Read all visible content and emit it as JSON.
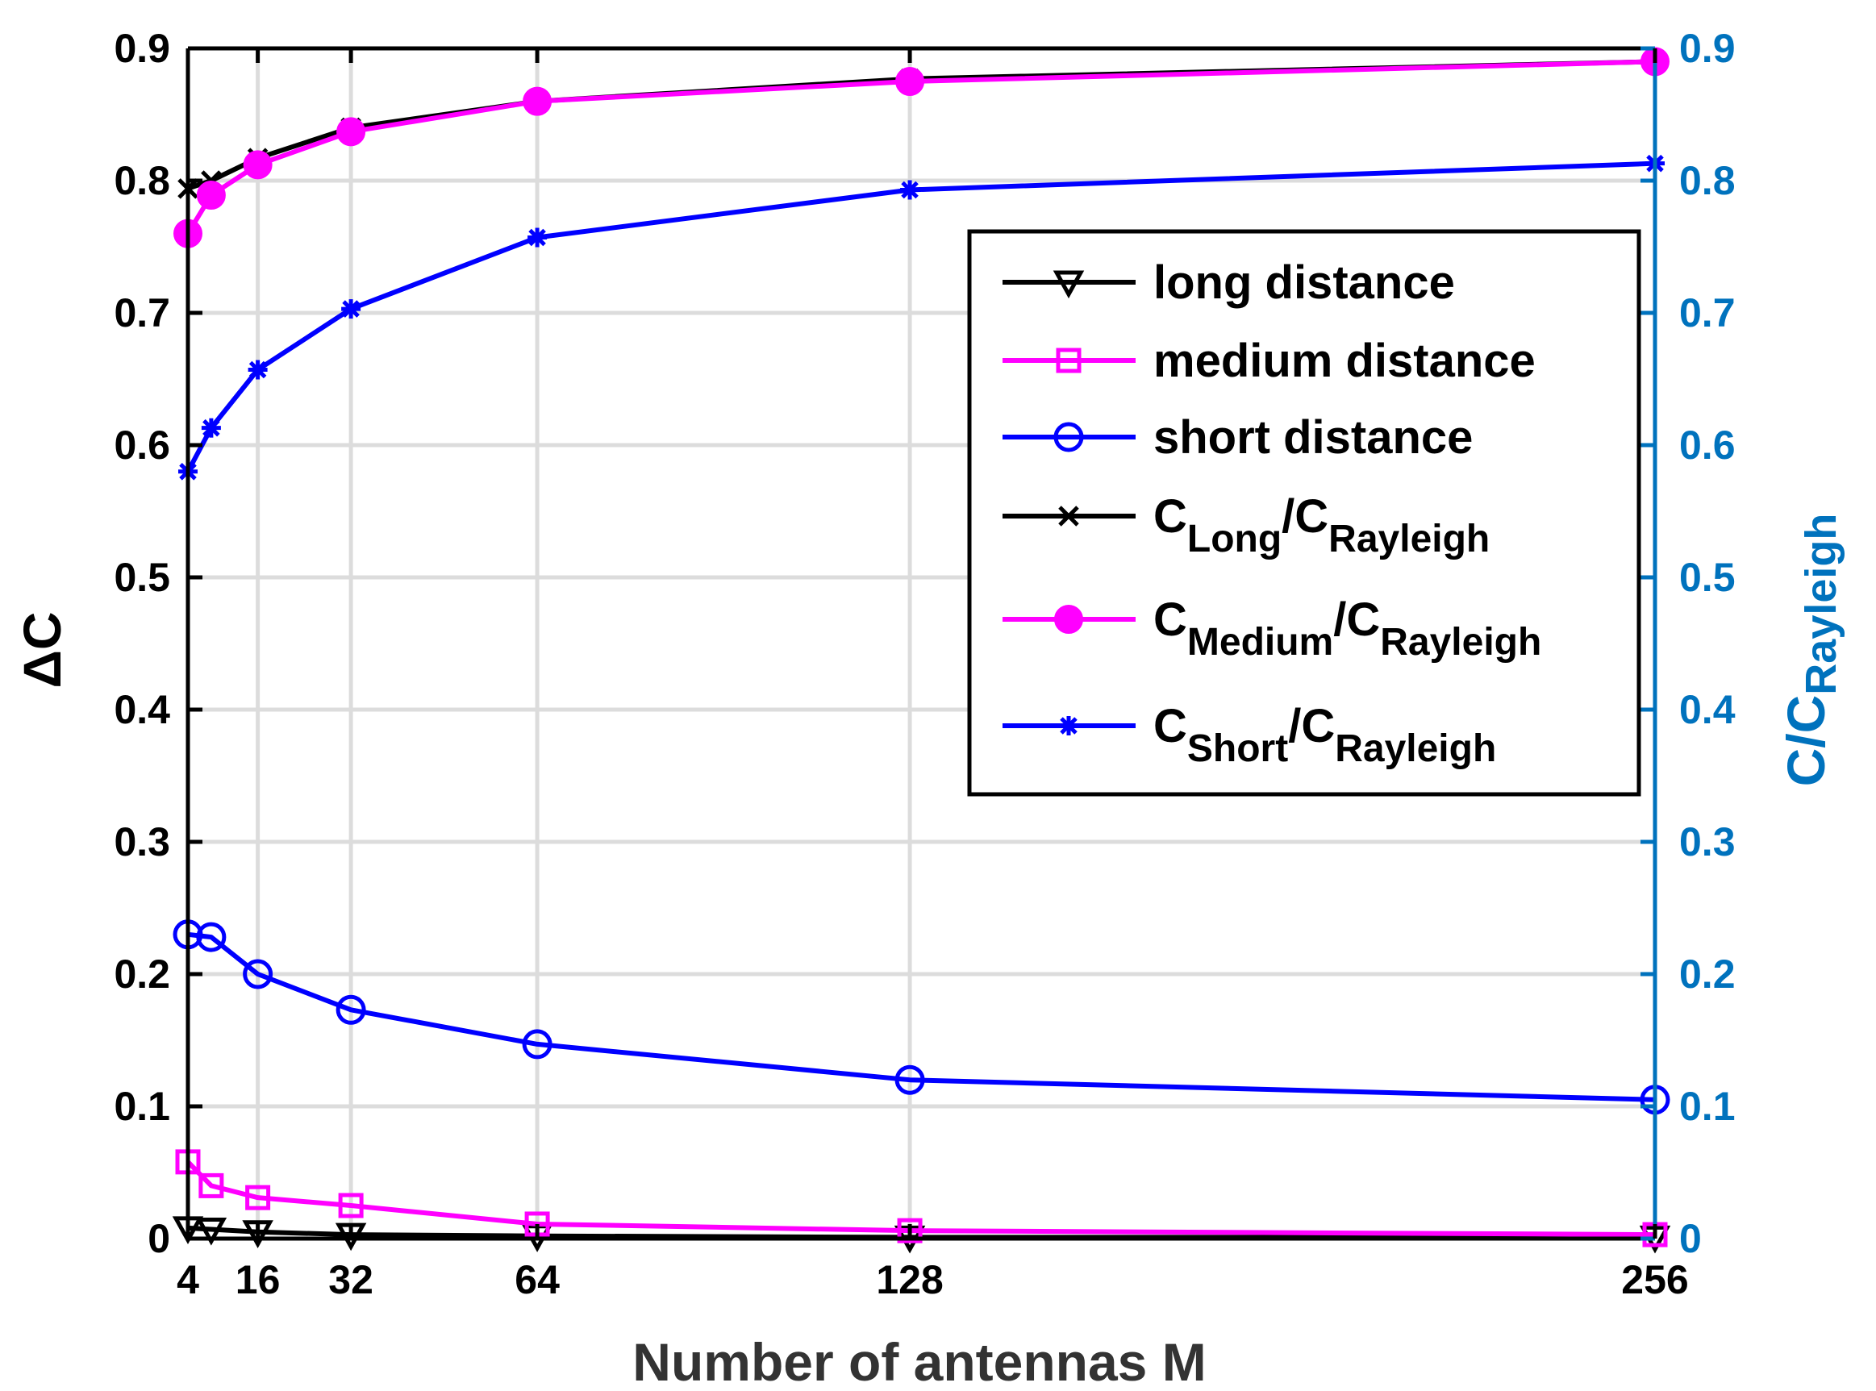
{
  "chart_data": {
    "type": "line",
    "title": "",
    "xlabel": "Number of antennas M",
    "ylabel_left": "ΔC",
    "ylabel_right": {
      "main": "C/C",
      "sub": "Rayleigh"
    },
    "xlim": [
      0,
      256
    ],
    "ylim_left": [
      0,
      0.9
    ],
    "ylim_right": [
      0,
      0.9
    ],
    "grid": true,
    "legend_position": "top-right",
    "x": [
      4,
      8,
      16,
      32,
      64,
      128,
      256
    ],
    "x_ticks": [
      4,
      16,
      32,
      64,
      128,
      256
    ],
    "x_tick_labels": [
      "4",
      "16",
      "32",
      "64",
      "128",
      "256"
    ],
    "y_ticks": [
      0,
      0.1,
      0.2,
      0.3,
      0.4,
      0.5,
      0.6,
      0.7,
      0.8,
      0.9
    ],
    "y_tick_labels_left": [
      "0",
      "0.1",
      "0.2",
      "0.3",
      "0.4",
      "0.5",
      "0.6",
      "0.7",
      "0.8",
      "0.9"
    ],
    "y_tick_labels_right": [
      "0",
      "0.1",
      "0.2",
      "0.3",
      "0.4",
      "0.5",
      "0.6",
      "0.7",
      "0.8",
      "0.9"
    ],
    "colors": {
      "left_axis": "#000000",
      "right_axis": "#0072BD",
      "grid": "#dcdcdc"
    },
    "series": [
      {
        "name": "long distance",
        "legend": {
          "main": "long distance"
        },
        "axis": "left",
        "color": "#000000",
        "marker": "triangle-down",
        "values": [
          0.008,
          0.007,
          0.005,
          0.003,
          0.002,
          0.001,
          0.001
        ]
      },
      {
        "name": "medium distance",
        "legend": {
          "main": "medium distance"
        },
        "axis": "left",
        "color": "#ff00ff",
        "marker": "square",
        "values": [
          0.058,
          0.04,
          0.031,
          0.025,
          0.011,
          0.006,
          0.003
        ]
      },
      {
        "name": "short distance",
        "legend": {
          "main": "short distance"
        },
        "axis": "left",
        "color": "#0000ff",
        "marker": "circle",
        "values": [
          0.23,
          0.228,
          0.2,
          0.173,
          0.147,
          0.12,
          0.105
        ]
      },
      {
        "name": "C_Long/C_Rayleigh",
        "legend": {
          "c1": "C",
          "s1": "Long",
          "slash": "/C",
          "s2": "Rayleigh"
        },
        "axis": "right",
        "color": "#000000",
        "marker": "x",
        "values": [
          0.794,
          0.8,
          0.817,
          0.84,
          0.86,
          0.877,
          0.89
        ]
      },
      {
        "name": "C_Medium/C_Rayleigh",
        "legend": {
          "c1": "C",
          "s1": "Medium",
          "slash": "/C",
          "s2": "Rayleigh"
        },
        "axis": "right",
        "color": "#ff00ff",
        "marker": "filled-circle",
        "values": [
          0.76,
          0.789,
          0.812,
          0.837,
          0.86,
          0.875,
          0.89
        ]
      },
      {
        "name": "C_Short/C_Rayleigh",
        "legend": {
          "c1": "C",
          "s1": "Short",
          "slash": "/C",
          "s2": "Rayleigh"
        },
        "axis": "right",
        "color": "#0000ff",
        "marker": "asterisk",
        "values": [
          0.58,
          0.613,
          0.657,
          0.703,
          0.757,
          0.793,
          0.813
        ]
      }
    ]
  }
}
